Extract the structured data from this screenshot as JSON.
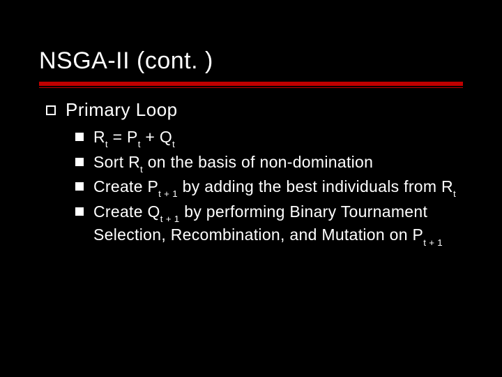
{
  "slide": {
    "title": "NSGA-II (cont. )",
    "background_color": "#000000",
    "text_color": "#ffffff",
    "accent_color": "#c00000",
    "title_fontsize": 34,
    "level1_fontsize": 26,
    "level2_fontsize": 23,
    "level1": {
      "text": "Primary Loop"
    },
    "level2": [
      {
        "parts": [
          {
            "t": "R"
          },
          {
            "t": "t",
            "sub": true
          },
          {
            "t": " = P"
          },
          {
            "t": "t",
            "sub": true
          },
          {
            "t": " + Q"
          },
          {
            "t": "t",
            "sub": true
          }
        ]
      },
      {
        "parts": [
          {
            "t": "Sort R"
          },
          {
            "t": "t",
            "sub": true
          },
          {
            "t": " on the basis of non-domination"
          }
        ]
      },
      {
        "parts": [
          {
            "t": "Create P"
          },
          {
            "t": "t + 1",
            "sub": true
          },
          {
            "t": " by adding the best individuals from R"
          },
          {
            "t": "t",
            "sub": true
          }
        ]
      },
      {
        "parts": [
          {
            "t": "Create Q"
          },
          {
            "t": "t + 1",
            "sub": true
          },
          {
            "t": " by performing Binary Tournament Selection, Recombination, and Mutation on P"
          },
          {
            "t": "t + 1",
            "sub": true
          }
        ]
      }
    ]
  }
}
